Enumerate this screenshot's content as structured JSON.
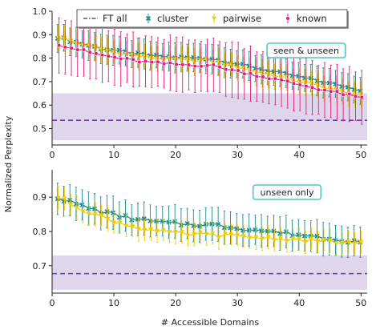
{
  "chart_data": {
    "type": "line",
    "xlabel": "# Accessible Domains",
    "ylabel": "Normalized Perplexity",
    "xlim": [
      0,
      51
    ],
    "x_ticks": [
      "0",
      "10",
      "20",
      "30",
      "40",
      "50"
    ],
    "legend": {
      "location": "top",
      "entries": [
        {
          "label": "FT all",
          "color": "#6a3daa",
          "marker": "dash-dot"
        },
        {
          "label": "cluster",
          "color": "#1a8c8c",
          "marker": "x"
        },
        {
          "label": "pairwise",
          "color": "#f5cc00",
          "marker": "triangle-down"
        },
        {
          "label": "known",
          "color": "#e6197a",
          "marker": "circle"
        }
      ]
    },
    "panels": [
      {
        "annotation": "seen & unseen",
        "ylim": [
          0.43,
          1.0
        ],
        "y_ticks": [
          "0.5",
          "0.6",
          "0.7",
          "0.8",
          "0.9",
          "1.0"
        ],
        "ft_all": {
          "value": 0.535,
          "band": [
            0.45,
            0.65
          ]
        },
        "series": [
          {
            "name": "cluster",
            "x_start": 1,
            "x_end": 50,
            "start": 0.89,
            "mid": 0.8,
            "end": 0.665,
            "err": 0.065
          },
          {
            "name": "pairwise",
            "x_start": 1,
            "x_end": 50,
            "start": 0.89,
            "mid": 0.79,
            "end": 0.64,
            "err": 0.06
          },
          {
            "name": "known",
            "x_start": 1,
            "x_end": 50,
            "start": 0.86,
            "mid": 0.77,
            "end": 0.63,
            "err": 0.12
          }
        ]
      },
      {
        "annotation": "unseen only",
        "ylim": [
          0.62,
          0.98
        ],
        "y_ticks": [
          "0.7",
          "0.8",
          "0.9"
        ],
        "ft_all": {
          "value": 0.677,
          "band": [
            0.63,
            0.73
          ]
        },
        "series": [
          {
            "name": "cluster",
            "x_start": 1,
            "x_end": 50,
            "start": 0.9,
            "mid": 0.82,
            "end": 0.77,
            "err": 0.05
          },
          {
            "name": "pairwise",
            "x_start": 1,
            "x_end": 50,
            "start": 0.9,
            "mid": 0.79,
            "end": 0.765,
            "err": 0.035
          }
        ]
      }
    ]
  }
}
